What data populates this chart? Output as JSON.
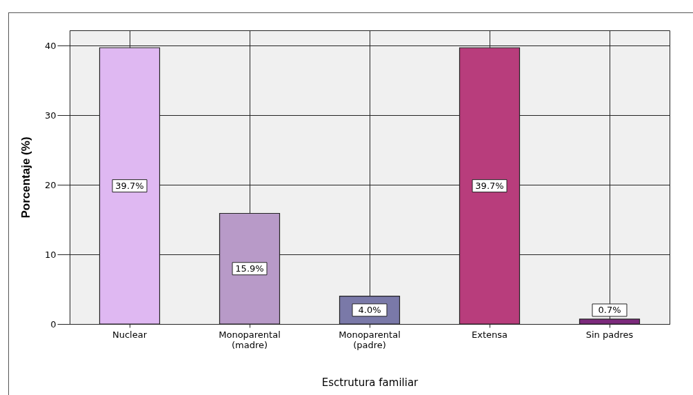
{
  "chart_data": {
    "type": "bar",
    "xlabel": "Esctrutura familiar",
    "ylabel": "Porcentaje (%)",
    "categories": [
      "Nuclear",
      "Monoparental (madre)",
      "Monoparental (padre)",
      "Extensa",
      "Sin padres"
    ],
    "values": [
      39.7,
      15.9,
      4.0,
      39.7,
      0.7
    ],
    "colors": [
      "#dfb8f2",
      "#b89ac8",
      "#7a79a8",
      "#b83d7c",
      "#7c2a7c"
    ],
    "value_labels": [
      "39.7%",
      "15.9%",
      "4.0%",
      "39.7%",
      "0.7%"
    ],
    "ylim": [
      0,
      42.2
    ],
    "yticks": [
      0,
      10,
      20,
      30,
      40
    ],
    "grid": true
  }
}
